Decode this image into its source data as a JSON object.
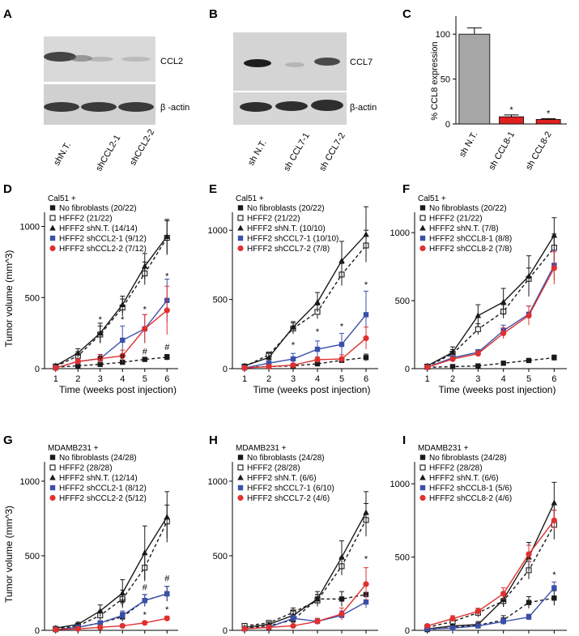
{
  "panels": {
    "A": {
      "letter": "A",
      "bands": [
        "CCL2",
        "β -actin"
      ],
      "lanes": [
        "shN.T.",
        "shCCL2-1",
        "shCCL2-2"
      ]
    },
    "B": {
      "letter": "B",
      "bands": [
        "CCL7",
        "β-actin"
      ],
      "lanes": [
        "sh N.T.",
        "sh CCL7-1",
        "sh CCL7-2"
      ]
    },
    "C": {
      "letter": "C",
      "chart_data": {
        "type": "bar",
        "title": "",
        "ylabel": "% CCL8 expression",
        "categories": [
          "sh N.T.",
          "sh CCL8-1",
          "sh CCL8-2"
        ],
        "values": [
          100,
          8,
          5
        ],
        "errors": [
          7,
          2,
          1
        ],
        "sig": [
          "",
          "*",
          "*"
        ],
        "colors": [
          "#a6a6a6",
          "#e02020",
          "#e02020"
        ],
        "ylim": [
          0,
          120
        ],
        "yticks": [
          0,
          50,
          100
        ]
      }
    }
  },
  "xlabel": "Time (weeks post injection)",
  "ylabel_main": "Tumor volume (mm^3)",
  "ylabel_alt": "Tumor  volume (mm^3)",
  "colors": {
    "black": "#1a1a1a",
    "blue": "#3a4fa8",
    "red": "#e03030",
    "gray": "#555555"
  },
  "chart_data": [
    {
      "id": "D",
      "type": "line",
      "letter": "D",
      "header": "Cal51 +",
      "x": [
        1,
        2,
        3,
        4,
        5,
        6
      ],
      "xticks": [
        1,
        2,
        3,
        4,
        5,
        6
      ],
      "ylim": [
        0,
        1100
      ],
      "yticks": [
        0,
        500,
        1000
      ],
      "ylabel": "Tumor volume (mm^3)",
      "xlabel": "Time (weeks post injection)",
      "series": [
        {
          "name": "No fibroblasts (20/22)",
          "marker": "square-filled",
          "color": "#1a1a1a",
          "dash": true,
          "values": [
            10,
            20,
            30,
            45,
            65,
            80
          ],
          "errors": [
            5,
            10,
            10,
            10,
            15,
            20
          ]
        },
        {
          "name": "HFFF2 (21/22)",
          "marker": "square-open",
          "color": "#1a1a1a",
          "dash": true,
          "values": [
            15,
            90,
            240,
            430,
            670,
            920
          ],
          "errors": [
            10,
            30,
            60,
            60,
            80,
            120
          ]
        },
        {
          "name": "HFFF2 shN.T. (14/14)",
          "marker": "triangle",
          "color": "#1a1a1a",
          "dash": false,
          "values": [
            20,
            110,
            250,
            450,
            720,
            930
          ],
          "errors": [
            10,
            30,
            70,
            60,
            90,
            120
          ]
        },
        {
          "name": "HFFF2 shCCL2-1 (9/12)",
          "marker": "square-filled",
          "color": "#3a4fa8",
          "dash": false,
          "values": [
            5,
            50,
            70,
            200,
            280,
            480
          ],
          "errors": [
            5,
            20,
            30,
            100,
            100,
            150
          ]
        },
        {
          "name": "HFFF2 shCCL2-2 (7/12)",
          "marker": "circle",
          "color": "#e03030",
          "dash": false,
          "values": [
            5,
            50,
            70,
            90,
            280,
            410
          ],
          "errors": [
            5,
            20,
            30,
            40,
            100,
            170
          ]
        }
      ],
      "annotations": [
        {
          "x": 3,
          "y": 325,
          "text": "*"
        },
        {
          "x": 4,
          "y": 325,
          "text": "*"
        },
        {
          "x": 5,
          "y": 395,
          "text": "*"
        },
        {
          "x": 6,
          "y": 630,
          "text": "*"
        },
        {
          "x": 3,
          "y": 60,
          "text": "#"
        },
        {
          "x": 4,
          "y": 65,
          "text": "#"
        },
        {
          "x": 5,
          "y": 100,
          "text": "#"
        },
        {
          "x": 6,
          "y": 130,
          "text": "#"
        }
      ]
    },
    {
      "id": "E",
      "type": "line",
      "letter": "E",
      "header": "Cal51 +",
      "x": [
        1,
        2,
        3,
        4,
        5,
        6
      ],
      "xticks": [
        1,
        2,
        3,
        4,
        5,
        6
      ],
      "ylim": [
        0,
        1130
      ],
      "yticks": [
        0,
        500,
        1000
      ],
      "ylabel": "",
      "xlabel": "Time (weeks post injection)",
      "series": [
        {
          "name": "No fibroblasts (20/22)",
          "marker": "square-filled",
          "color": "#1a1a1a",
          "dash": true,
          "values": [
            10,
            15,
            20,
            35,
            60,
            80
          ],
          "errors": [
            5,
            5,
            5,
            10,
            15,
            25
          ]
        },
        {
          "name": "HFFF2 (21/22)",
          "marker": "square-open",
          "color": "#1a1a1a",
          "dash": true,
          "values": [
            15,
            100,
            290,
            410,
            680,
            890
          ],
          "errors": [
            10,
            20,
            40,
            50,
            80,
            110
          ]
        },
        {
          "name": "HFFF2 shN.T. (10/10)",
          "marker": "triangle",
          "color": "#1a1a1a",
          "dash": false,
          "values": [
            20,
            80,
            300,
            480,
            780,
            970
          ],
          "errors": [
            10,
            30,
            40,
            70,
            140,
            200
          ]
        },
        {
          "name": "HFFF2 shCCL7-1 (10/10)",
          "marker": "square-filled",
          "color": "#3a4fa8",
          "dash": false,
          "values": [
            5,
            40,
            70,
            140,
            175,
            390
          ],
          "errors": [
            5,
            15,
            40,
            60,
            80,
            170
          ]
        },
        {
          "name": "HFFF2 shCCL7-2 (7/8)",
          "marker": "circle",
          "color": "#e03030",
          "dash": false,
          "values": [
            5,
            15,
            25,
            65,
            70,
            220
          ],
          "errors": [
            5,
            5,
            10,
            20,
            30,
            80
          ]
        }
      ],
      "annotations": [
        {
          "x": 3,
          "y": 150,
          "text": "*"
        },
        {
          "x": 4,
          "y": 245,
          "text": "*"
        },
        {
          "x": 5,
          "y": 285,
          "text": "*"
        },
        {
          "x": 6,
          "y": 585,
          "text": "*"
        }
      ]
    },
    {
      "id": "F",
      "type": "line",
      "letter": "F",
      "header": "Cal51 +",
      "x": [
        1,
        2,
        3,
        4,
        5,
        6
      ],
      "xticks": [
        1,
        2,
        3,
        4,
        5,
        6
      ],
      "ylim": [
        0,
        1150
      ],
      "yticks": [
        0,
        500,
        1000
      ],
      "ylabel": "",
      "xlabel": "Time (weeks post injection)",
      "series": [
        {
          "name": "No fibroblasts (20/22)",
          "marker": "square-filled",
          "color": "#1a1a1a",
          "dash": true,
          "values": [
            10,
            15,
            20,
            40,
            60,
            80
          ],
          "errors": [
            5,
            5,
            5,
            10,
            15,
            20
          ]
        },
        {
          "name": "HFFF2 (21/22)",
          "marker": "square-open",
          "color": "#1a1a1a",
          "dash": true,
          "values": [
            15,
            110,
            290,
            420,
            660,
            890
          ],
          "errors": [
            10,
            30,
            40,
            50,
            80,
            100
          ]
        },
        {
          "name": "HFFF2 shN.T. (7/8)",
          "marker": "triangle",
          "color": "#1a1a1a",
          "dash": false,
          "values": [
            20,
            120,
            390,
            490,
            680,
            980
          ],
          "errors": [
            10,
            40,
            80,
            100,
            150,
            130
          ]
        },
        {
          "name": "HFFF2 shCCL8-1 (8/8)",
          "marker": "square-filled",
          "color": "#3a4fa8",
          "dash": false,
          "values": [
            10,
            80,
            120,
            280,
            400,
            760
          ],
          "errors": [
            5,
            15,
            20,
            40,
            60,
            110
          ]
        },
        {
          "name": "HFFF2 shCCL8-2 (7/8)",
          "marker": "circle",
          "color": "#e03030",
          "dash": false,
          "values": [
            10,
            70,
            110,
            260,
            390,
            740
          ],
          "errors": [
            5,
            15,
            20,
            40,
            70,
            120
          ]
        }
      ],
      "annotations": []
    },
    {
      "id": "G",
      "type": "line",
      "letter": "G",
      "header": "MDAMB231 +",
      "x": [
        1,
        2,
        3,
        4,
        5,
        6
      ],
      "xticks": [
        1,
        2,
        3,
        4,
        5,
        6
      ],
      "ylim": [
        0,
        1130
      ],
      "yticks": [
        0,
        500,
        1000
      ],
      "ylabel": "Tumor  volume (mm^3)",
      "xlabel": "Time (weeks post injection)",
      "series": [
        {
          "name": "No fibroblasts (24/28)",
          "marker": "square-filled",
          "color": "#1a1a1a",
          "dash": true,
          "values": [
            5,
            20,
            50,
            90,
            200,
            245
          ],
          "errors": [
            5,
            10,
            15,
            30,
            40,
            50
          ]
        },
        {
          "name": "HFFF2 (28/28)",
          "marker": "square-open",
          "color": "#1a1a1a",
          "dash": true,
          "values": [
            10,
            30,
            100,
            210,
            420,
            730
          ],
          "errors": [
            5,
            15,
            30,
            60,
            90,
            110
          ]
        },
        {
          "name": "HFFF2 shN.T. (12/14)",
          "marker": "triangle",
          "color": "#1a1a1a",
          "dash": false,
          "values": [
            15,
            40,
            130,
            250,
            520,
            760
          ],
          "errors": [
            5,
            15,
            40,
            90,
            180,
            170
          ]
        },
        {
          "name": "HFFF2 shCCL2-1 (8/12)",
          "marker": "square-filled",
          "color": "#3a4fa8",
          "dash": false,
          "values": [
            5,
            20,
            50,
            100,
            200,
            245
          ],
          "errors": [
            5,
            10,
            15,
            30,
            40,
            50
          ]
        },
        {
          "name": "HFFF2 shCCL2-2 (5/12)",
          "marker": "circle",
          "color": "#e03030",
          "dash": false,
          "values": [
            5,
            10,
            20,
            30,
            50,
            80
          ],
          "errors": [
            3,
            5,
            5,
            10,
            10,
            15
          ]
        }
      ],
      "annotations": [
        {
          "x": 4,
          "y": 175,
          "text": "#"
        },
        {
          "x": 5,
          "y": 270,
          "text": "#"
        },
        {
          "x": 6,
          "y": 330,
          "text": "#"
        },
        {
          "x": 5,
          "y": 85,
          "text": "*"
        },
        {
          "x": 6,
          "y": 120,
          "text": "*"
        }
      ]
    },
    {
      "id": "H",
      "type": "line",
      "letter": "H",
      "header": "MDAMB231 +",
      "x": [
        1,
        2,
        3,
        4,
        5,
        6
      ],
      "xticks": [
        1,
        2,
        3,
        4,
        5,
        6
      ],
      "ylim": [
        0,
        1130
      ],
      "yticks": [
        0,
        500,
        1000
      ],
      "ylabel": "",
      "xlabel": "Time (weeks post injection)",
      "series": [
        {
          "name": "No fibroblasts (24/28)",
          "marker": "square-filled",
          "color": "#1a1a1a",
          "dash": true,
          "values": [
            15,
            30,
            70,
            210,
            210,
            240
          ],
          "errors": [
            5,
            10,
            20,
            30,
            50,
            70
          ]
        },
        {
          "name": "HFFF2 (28/28)",
          "marker": "square-open",
          "color": "#1a1a1a",
          "dash": true,
          "values": [
            30,
            50,
            120,
            200,
            430,
            740
          ],
          "errors": [
            10,
            15,
            30,
            40,
            60,
            110
          ]
        },
        {
          "name": "HFFF2 shN.T. (6/6)",
          "marker": "triangle",
          "color": "#1a1a1a",
          "dash": false,
          "values": [
            20,
            40,
            100,
            210,
            490,
            790
          ],
          "errors": [
            5,
            15,
            30,
            50,
            110,
            140
          ]
        },
        {
          "name": "HFFF2 shCCL7-1 (6/10)",
          "marker": "square-filled",
          "color": "#3a4fa8",
          "dash": false,
          "values": [
            10,
            20,
            80,
            60,
            100,
            190
          ],
          "errors": [
            5,
            5,
            20,
            20,
            30,
            40
          ]
        },
        {
          "name": "HFFF2 shCCL7-2 (4/6)",
          "marker": "circle",
          "color": "#e03030",
          "dash": false,
          "values": [
            10,
            20,
            30,
            60,
            110,
            310
          ],
          "errors": [
            5,
            5,
            10,
            20,
            40,
            110
          ]
        }
      ],
      "annotations": [
        {
          "x": 6,
          "y": 460,
          "text": "*"
        }
      ]
    },
    {
      "id": "I",
      "type": "line",
      "letter": "I",
      "header": "MDAMB231 +",
      "x": [
        1,
        2,
        3,
        4,
        5,
        6
      ],
      "xticks": [
        1,
        2,
        3,
        4,
        5,
        6
      ],
      "ylim": [
        0,
        1150
      ],
      "yticks": [
        0,
        500,
        1000
      ],
      "ylabel": "",
      "xlabel": "Time (weeks post injection)",
      "series": [
        {
          "name": "No fibroblasts (24/28)",
          "marker": "square-filled",
          "color": "#1a1a1a",
          "dash": true,
          "values": [
            5,
            20,
            35,
            70,
            190,
            220
          ],
          "errors": [
            3,
            10,
            15,
            30,
            40,
            50
          ]
        },
        {
          "name": "HFFF2 (28/28)",
          "marker": "square-open",
          "color": "#1a1a1a",
          "dash": true,
          "values": [
            20,
            60,
            120,
            200,
            410,
            720
          ],
          "errors": [
            5,
            15,
            30,
            40,
            60,
            100
          ]
        },
        {
          "name": "HFFF2 shN.T. (6/6)",
          "marker": "triangle",
          "color": "#1a1a1a",
          "dash": false,
          "values": [
            10,
            30,
            40,
            210,
            500,
            870
          ],
          "errors": [
            5,
            10,
            20,
            50,
            100,
            140
          ]
        },
        {
          "name": "HFFF2 shCCL8-1 (5/6)",
          "marker": "square-filled",
          "color": "#3a4fa8",
          "dash": false,
          "values": [
            10,
            15,
            30,
            60,
            90,
            290
          ],
          "errors": [
            5,
            5,
            10,
            20,
            20,
            40
          ]
        },
        {
          "name": "HFFF2 shCCL8-2 (4/6)",
          "marker": "circle",
          "color": "#e03030",
          "dash": false,
          "values": [
            30,
            80,
            130,
            250,
            520,
            750
          ],
          "errors": [
            10,
            20,
            20,
            40,
            60,
            70
          ]
        }
      ],
      "annotations": [
        {
          "x": 6,
          "y": 360,
          "text": "*"
        }
      ]
    }
  ]
}
